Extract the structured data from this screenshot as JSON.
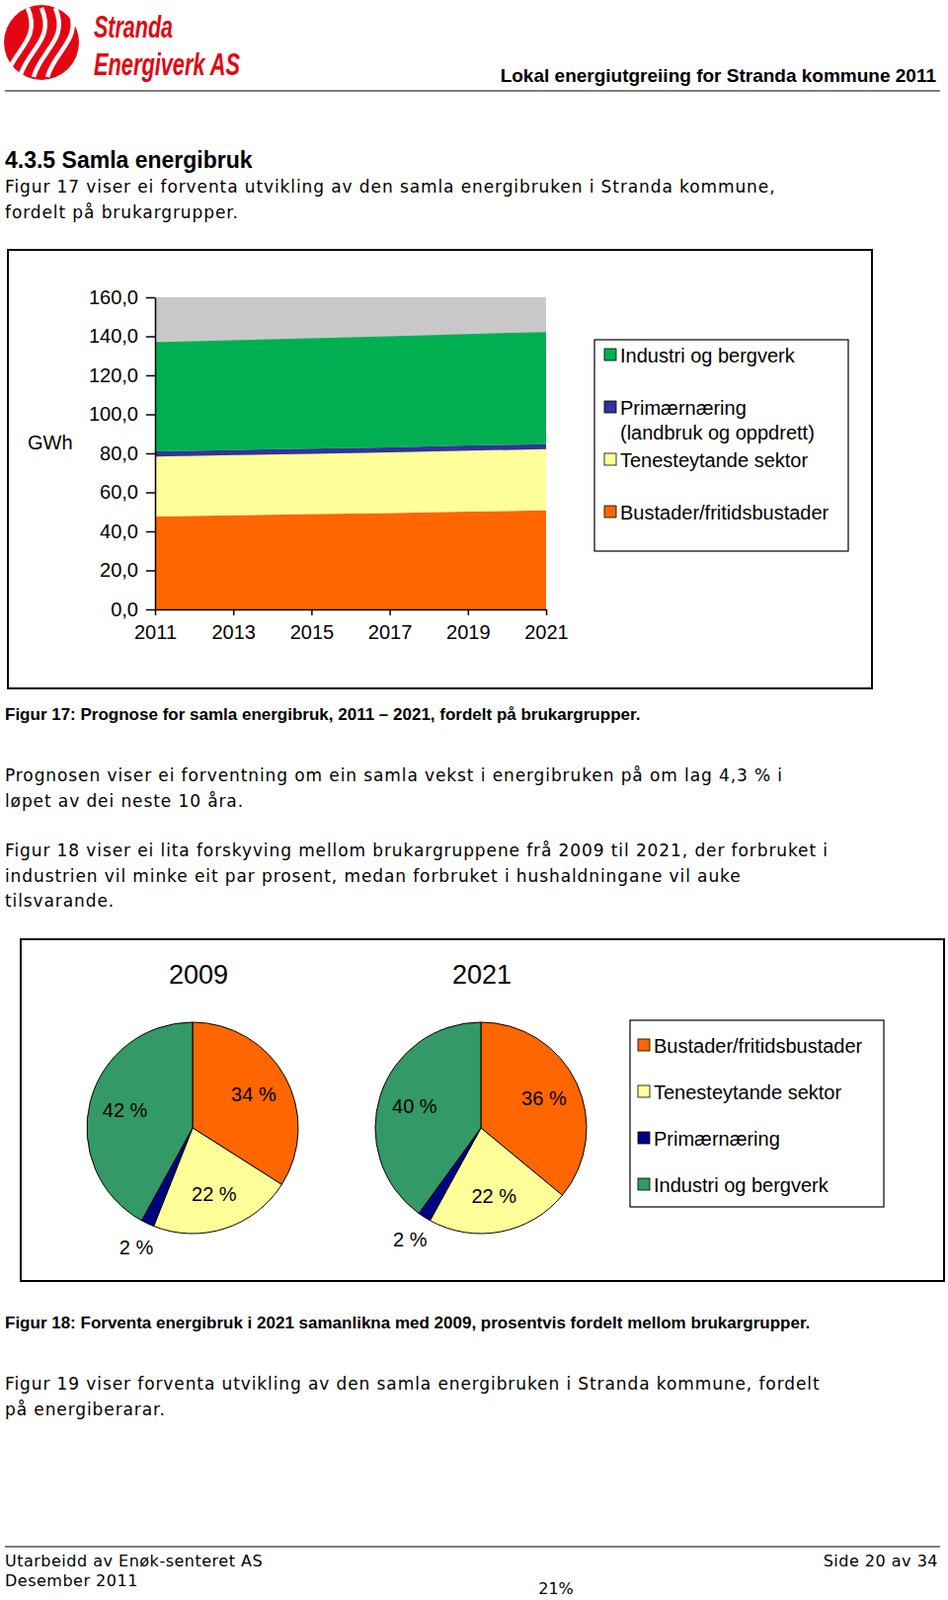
{
  "header": {
    "logo_lines": [
      "Stranda",
      "Energiverk AS"
    ],
    "title": "Lokal energiutgreiing for Stranda kommune 2011"
  },
  "section": {
    "heading": "4.3.5 Samla energibruk"
  },
  "paragraphs": [
    {
      "lines": [
        "Figur 17 viser ei forventa utvikling av den samla energibruken i Stranda kommune,",
        "fordelt på brukargrupper."
      ]
    },
    {
      "lines": [
        "Prognosen viser ei forventning om ein samla vekst i energibruken på om lag 4,3 % i",
        "løpet av dei neste 10 åra."
      ]
    },
    {
      "lines": [
        "Figur 18 viser ei lita forskyving mellom brukargruppene frå 2009 til 2021, der forbruket i",
        "industrien vil minke eit par prosent, medan forbruket i hushaldningane vil auke",
        "tilsvarande."
      ]
    },
    {
      "lines": [
        "Figur 19 viser forventa utvikling av den samla energibruken i Stranda kommune, fordelt",
        "på energiberarar."
      ]
    }
  ],
  "captions": [
    "Figur 17: Prognose for samla energibruk, 2011 – 2021, fordelt på brukargrupper.",
    "Figur 18: Forventa energibruk i 2021 samanlikna med 2009, prosentvis fordelt mellom brukargrupper."
  ],
  "chart_data": [
    {
      "type": "area",
      "stacked": true,
      "y_label": "GWh",
      "x": [
        2011,
        2013,
        2015,
        2017,
        2019,
        2021
      ],
      "xlim": [
        2011,
        2021
      ],
      "xticks": [
        2011,
        2013,
        2015,
        2017,
        2019,
        2021
      ],
      "ylim": [
        0,
        160
      ],
      "yticks": [
        {
          "value": 0,
          "label": "0,0"
        },
        {
          "value": 20,
          "label": "20,0"
        },
        {
          "value": 40,
          "label": "40,0"
        },
        {
          "value": 60,
          "label": "60,0"
        },
        {
          "value": 80,
          "label": "80,0"
        },
        {
          "value": 100,
          "label": "100,0"
        },
        {
          "value": 120,
          "label": "120,0"
        },
        {
          "value": 140,
          "label": "140,0"
        },
        {
          "value": 160,
          "label": "160,0"
        }
      ],
      "legend": "right",
      "series": [
        {
          "name": "Bustader/fritidsbustader",
          "color": "#ff6600",
          "values": [
            47.6,
            48.2,
            48.8,
            49.4,
            50.1,
            50.7
          ]
        },
        {
          "name": "Tenesteytande sektor",
          "color": "#ffff99",
          "values": [
            30.8,
            30.9,
            31.0,
            31.1,
            31.3,
            31.4
          ]
        },
        {
          "name": "Primærnæring (landbruk og oppdrett)",
          "color": "#333399",
          "values": [
            2.6,
            2.6,
            2.6,
            2.6,
            2.6,
            2.6
          ]
        },
        {
          "name": "Industri og bergverk",
          "color": "#00b050",
          "values": [
            56.0,
            56.3,
            56.6,
            56.9,
            57.2,
            57.5
          ]
        }
      ]
    },
    {
      "type": "pie",
      "data_labels": true,
      "legend": "right",
      "categories": [
        "Bustader/fritidsbustader",
        "Tenesteytande sektor",
        "Primærnæring",
        "Industri og bergverk"
      ],
      "colors": [
        "#ff6600",
        "#ffff99",
        "#000080",
        "#339966"
      ],
      "series": [
        {
          "name": "2009",
          "values": [
            34,
            22,
            2,
            42
          ],
          "value_labels": [
            "34 %",
            "22 %",
            "2 %",
            "42 %"
          ]
        },
        {
          "name": "2021",
          "values": [
            36,
            22,
            2,
            40
          ],
          "value_labels": [
            "36 %",
            "22 %",
            "2 %",
            "40 %"
          ]
        }
      ]
    }
  ],
  "footer": {
    "left_lines": [
      "Utarbeidd av Enøk-senteret AS",
      "Desember 2011"
    ],
    "right": "Side 20 av 34",
    "bottom_center": "21%"
  }
}
